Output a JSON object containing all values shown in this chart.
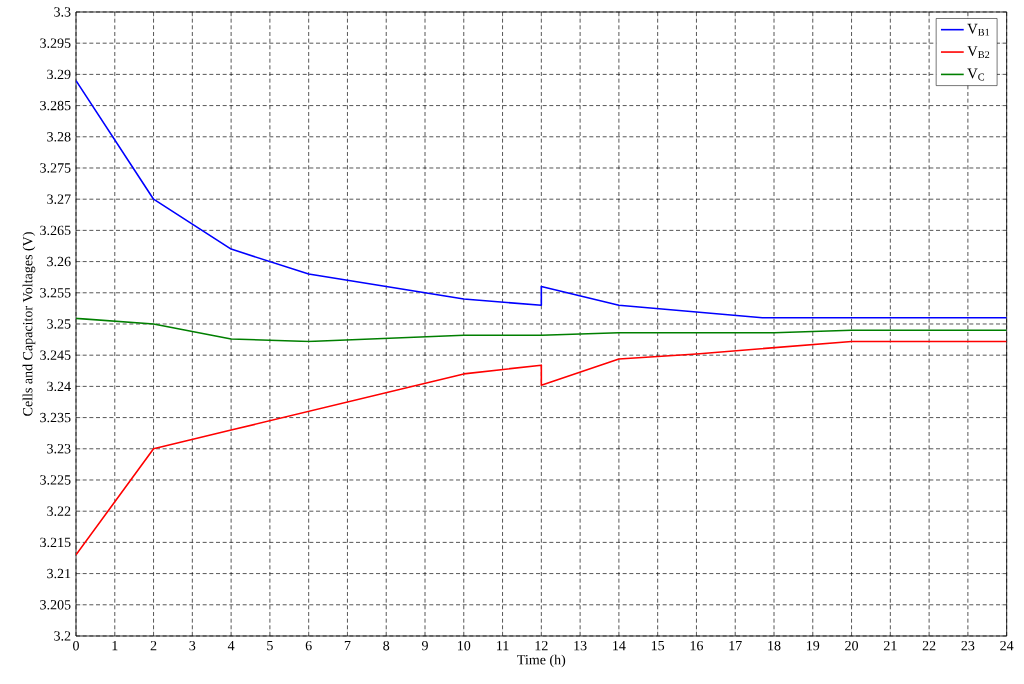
{
  "chart_data": {
    "type": "line",
    "xlabel": "Time (h)",
    "ylabel": "Cells and Capacitor Voltages (V)",
    "xlim": [
      0,
      24
    ],
    "ylim": [
      3.2,
      3.3
    ],
    "xticks": [
      {
        "value": 0,
        "label": "0"
      },
      {
        "value": 1,
        "label": "1"
      },
      {
        "value": 2,
        "label": "2"
      },
      {
        "value": 3,
        "label": "3"
      },
      {
        "value": 4,
        "label": "4"
      },
      {
        "value": 5,
        "label": "5"
      },
      {
        "value": 6,
        "label": "6"
      },
      {
        "value": 7,
        "label": "7"
      },
      {
        "value": 8,
        "label": "8"
      },
      {
        "value": 9,
        "label": "9"
      },
      {
        "value": 10,
        "label": "10"
      },
      {
        "value": 11,
        "label": "11"
      },
      {
        "value": 12,
        "label": "12"
      },
      {
        "value": 13,
        "label": "13"
      },
      {
        "value": 14,
        "label": "14"
      },
      {
        "value": 15,
        "label": "15"
      },
      {
        "value": 16,
        "label": "16"
      },
      {
        "value": 17,
        "label": "17"
      },
      {
        "value": 18,
        "label": "18"
      },
      {
        "value": 19,
        "label": "19"
      },
      {
        "value": 20,
        "label": "20"
      },
      {
        "value": 21,
        "label": "21"
      },
      {
        "value": 22,
        "label": "22"
      },
      {
        "value": 23,
        "label": "23"
      },
      {
        "value": 24,
        "label": "24"
      }
    ],
    "yticks": [
      {
        "value": 3.2,
        "label": "3.2"
      },
      {
        "value": 3.205,
        "label": "3.205"
      },
      {
        "value": 3.21,
        "label": "3.21"
      },
      {
        "value": 3.215,
        "label": "3.215"
      },
      {
        "value": 3.22,
        "label": "3.22"
      },
      {
        "value": 3.225,
        "label": "3.225"
      },
      {
        "value": 3.23,
        "label": "3.23"
      },
      {
        "value": 3.235,
        "label": "3.235"
      },
      {
        "value": 3.24,
        "label": "3.24"
      },
      {
        "value": 3.245,
        "label": "3.245"
      },
      {
        "value": 3.25,
        "label": "3.25"
      },
      {
        "value": 3.255,
        "label": "3.255"
      },
      {
        "value": 3.26,
        "label": "3.26"
      },
      {
        "value": 3.265,
        "label": "3.265"
      },
      {
        "value": 3.27,
        "label": "3.27"
      },
      {
        "value": 3.275,
        "label": "3.275"
      },
      {
        "value": 3.28,
        "label": "3.28"
      },
      {
        "value": 3.285,
        "label": "3.285"
      },
      {
        "value": 3.29,
        "label": "3.29"
      },
      {
        "value": 3.295,
        "label": "3.295"
      },
      {
        "value": 3.3,
        "label": "3.3"
      }
    ],
    "grid": true,
    "legend": "top right",
    "line_style": "solid",
    "marker": "none",
    "series": [
      {
        "name": "V$_{B1}$",
        "color": "#0000ff",
        "x": [
          0,
          2,
          4,
          6,
          10,
          12,
          12,
          14,
          17.7,
          24
        ],
        "values": [
          3.289,
          3.27,
          3.262,
          3.258,
          3.254,
          3.253,
          3.256,
          3.253,
          3.251,
          3.251
        ]
      },
      {
        "name": "V$_{B2}$",
        "color": "#ff0000",
        "x": [
          0,
          2,
          4,
          6,
          10,
          12,
          12,
          14,
          16,
          20,
          24
        ],
        "values": [
          3.213,
          3.23,
          3.233,
          3.236,
          3.242,
          3.2434,
          3.2402,
          3.2444,
          3.2452,
          3.2472,
          3.2472
        ]
      },
      {
        "name": "V$_{C}$",
        "color": "#007f00",
        "x": [
          0,
          2,
          4,
          6,
          10,
          12,
          14,
          18,
          20,
          24
        ],
        "values": [
          3.2509,
          3.25,
          3.2476,
          3.2472,
          3.2482,
          3.2482,
          3.2486,
          3.2486,
          3.249,
          3.249
        ]
      }
    ]
  }
}
